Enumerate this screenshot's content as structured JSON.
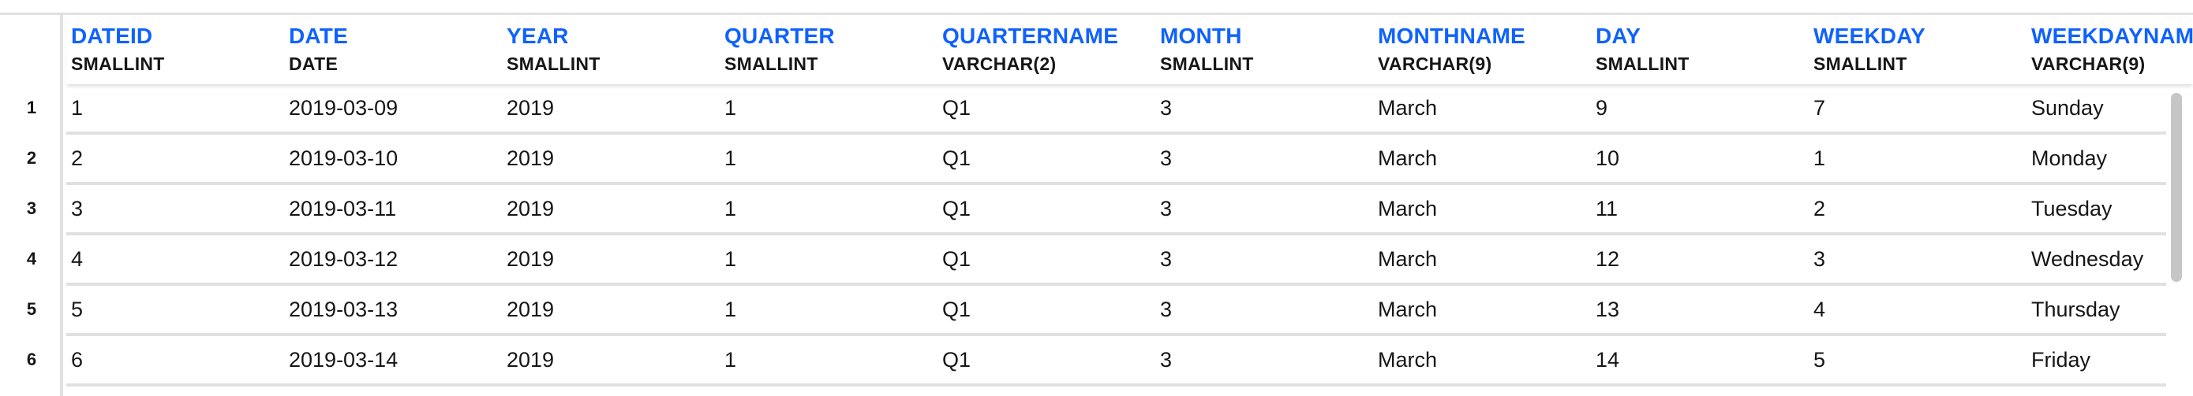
{
  "table": {
    "columns": [
      {
        "name": "DATEID",
        "type": "SMALLINT"
      },
      {
        "name": "DATE",
        "type": "DATE"
      },
      {
        "name": "YEAR",
        "type": "SMALLINT"
      },
      {
        "name": "QUARTER",
        "type": "SMALLINT"
      },
      {
        "name": "QUARTERNAME",
        "type": "VARCHAR(2)"
      },
      {
        "name": "MONTH",
        "type": "SMALLINT"
      },
      {
        "name": "MONTHNAME",
        "type": "VARCHAR(9)"
      },
      {
        "name": "DAY",
        "type": "SMALLINT"
      },
      {
        "name": "WEEKDAY",
        "type": "SMALLINT"
      },
      {
        "name": "WEEKDAYNAM",
        "type": "VARCHAR(9)"
      }
    ],
    "row_numbers": [
      "1",
      "2",
      "3",
      "4",
      "5",
      "6"
    ],
    "rows": [
      [
        "1",
        "2019-03-09",
        "2019",
        "1",
        "Q1",
        "3",
        "March",
        "9",
        "7",
        "Sunday"
      ],
      [
        "2",
        "2019-03-10",
        "2019",
        "1",
        "Q1",
        "3",
        "March",
        "10",
        "1",
        "Monday"
      ],
      [
        "3",
        "2019-03-11",
        "2019",
        "1",
        "Q1",
        "3",
        "March",
        "11",
        "2",
        "Tuesday"
      ],
      [
        "4",
        "2019-03-12",
        "2019",
        "1",
        "Q1",
        "3",
        "March",
        "12",
        "3",
        "Wednesday"
      ],
      [
        "5",
        "2019-03-13",
        "2019",
        "1",
        "Q1",
        "3",
        "March",
        "13",
        "4",
        "Thursday"
      ],
      [
        "6",
        "2019-03-14",
        "2019",
        "1",
        "Q1",
        "3",
        "March",
        "14",
        "5",
        "Friday"
      ]
    ]
  },
  "colors": {
    "header_name": "#0f62fe",
    "text": "#161616",
    "grid_line": "#e0e0e0",
    "scrollbar": "#c6c6c6"
  }
}
